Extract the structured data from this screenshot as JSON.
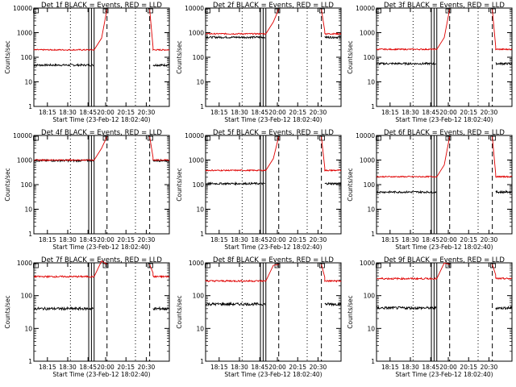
{
  "start_time_label": "Start Time (23-Feb-12 18:02:40)",
  "ylabel": "Counts/sec",
  "x_ticks": [
    "18:15",
    "18:30",
    "18:45",
    "20:00",
    "20:15",
    "20:30"
  ],
  "y_ticks": [
    "1",
    "10",
    "100",
    "1000",
    "10000"
  ],
  "colors": {
    "events": "#000000",
    "lld": "#e00000"
  },
  "chart_data": [
    {
      "type": "line",
      "title": "Det 1f BLACK = Events, RED = LLD",
      "ylim": [
        1,
        10000
      ],
      "yscale": "log",
      "series": [
        {
          "name": "Events",
          "level": 48
        },
        {
          "name": "LLD",
          "level": 200
        }
      ]
    },
    {
      "type": "line",
      "title": "Det 2f BLACK = Events, RED = LLD",
      "ylim": [
        1,
        10000
      ],
      "yscale": "log",
      "series": [
        {
          "name": "Events",
          "level": 650
        },
        {
          "name": "LLD",
          "level": 900
        }
      ]
    },
    {
      "type": "line",
      "title": "Det 3f BLACK = Events, RED = LLD",
      "ylim": [
        1,
        10000
      ],
      "yscale": "log",
      "series": [
        {
          "name": "Events",
          "level": 55
        },
        {
          "name": "LLD",
          "level": 210
        }
      ]
    },
    {
      "type": "line",
      "title": "Det 4f BLACK = Events, RED = LLD",
      "ylim": [
        1,
        10000
      ],
      "yscale": "log",
      "series": [
        {
          "name": "Events",
          "level": 950
        },
        {
          "name": "LLD",
          "level": 1000
        }
      ]
    },
    {
      "type": "line",
      "title": "Det 5f BLACK = Events, RED = LLD",
      "ylim": [
        1,
        10000
      ],
      "yscale": "log",
      "series": [
        {
          "name": "Events",
          "level": 110
        },
        {
          "name": "LLD",
          "level": 380
        }
      ]
    },
    {
      "type": "line",
      "title": "Det 6f BLACK = Events, RED = LLD",
      "ylim": [
        1,
        10000
      ],
      "yscale": "log",
      "series": [
        {
          "name": "Events",
          "level": 50
        },
        {
          "name": "LLD",
          "level": 210
        }
      ]
    },
    {
      "type": "line",
      "title": "Det 7f BLACK = Events, RED = LLD",
      "ylim": [
        1,
        1000
      ],
      "yscale": "log",
      "series": [
        {
          "name": "Events",
          "level": 40
        },
        {
          "name": "LLD",
          "level": 380
        }
      ]
    },
    {
      "type": "line",
      "title": "Det 8f BLACK = Events, RED = LLD",
      "ylim": [
        1,
        1000
      ],
      "yscale": "log",
      "series": [
        {
          "name": "Events",
          "level": 55
        },
        {
          "name": "LLD",
          "level": 280
        }
      ]
    },
    {
      "type": "line",
      "title": "Det 9f BLACK = Events, RED = LLD",
      "ylim": [
        1,
        1000
      ],
      "yscale": "log",
      "series": [
        {
          "name": "Events",
          "level": 42
        },
        {
          "name": "LLD",
          "level": 330
        }
      ]
    }
  ]
}
